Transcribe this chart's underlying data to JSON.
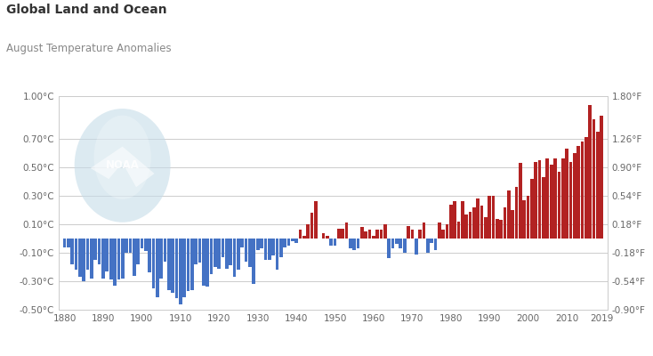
{
  "title": "Global Land and Ocean",
  "subtitle": "August Temperature Anomalies",
  "years": [
    1880,
    1881,
    1882,
    1883,
    1884,
    1885,
    1886,
    1887,
    1888,
    1889,
    1890,
    1891,
    1892,
    1893,
    1894,
    1895,
    1896,
    1897,
    1898,
    1899,
    1900,
    1901,
    1902,
    1903,
    1904,
    1905,
    1906,
    1907,
    1908,
    1909,
    1910,
    1911,
    1912,
    1913,
    1914,
    1915,
    1916,
    1917,
    1918,
    1919,
    1920,
    1921,
    1922,
    1923,
    1924,
    1925,
    1926,
    1927,
    1928,
    1929,
    1930,
    1931,
    1932,
    1933,
    1934,
    1935,
    1936,
    1937,
    1938,
    1939,
    1940,
    1941,
    1942,
    1943,
    1944,
    1945,
    1946,
    1947,
    1948,
    1949,
    1950,
    1951,
    1952,
    1953,
    1954,
    1955,
    1956,
    1957,
    1958,
    1959,
    1960,
    1961,
    1962,
    1963,
    1964,
    1965,
    1966,
    1967,
    1968,
    1969,
    1970,
    1971,
    1972,
    1973,
    1974,
    1975,
    1976,
    1977,
    1978,
    1979,
    1980,
    1981,
    1982,
    1983,
    1984,
    1985,
    1986,
    1987,
    1988,
    1989,
    1990,
    1991,
    1992,
    1993,
    1994,
    1995,
    1996,
    1997,
    1998,
    1999,
    2000,
    2001,
    2002,
    2003,
    2004,
    2005,
    2006,
    2007,
    2008,
    2009,
    2010,
    2011,
    2012,
    2013,
    2014,
    2015,
    2016,
    2017,
    2018,
    2019
  ],
  "anomalies": [
    -0.06,
    -0.06,
    -0.18,
    -0.22,
    -0.27,
    -0.3,
    -0.22,
    -0.28,
    -0.15,
    -0.18,
    -0.28,
    -0.23,
    -0.29,
    -0.33,
    -0.29,
    -0.28,
    -0.1,
    -0.1,
    -0.26,
    -0.18,
    -0.07,
    -0.09,
    -0.24,
    -0.35,
    -0.41,
    -0.28,
    -0.16,
    -0.36,
    -0.38,
    -0.42,
    -0.46,
    -0.41,
    -0.37,
    -0.36,
    -0.18,
    -0.17,
    -0.33,
    -0.34,
    -0.25,
    -0.2,
    -0.21,
    -0.13,
    -0.21,
    -0.19,
    -0.27,
    -0.22,
    -0.06,
    -0.16,
    -0.2,
    -0.32,
    -0.08,
    -0.07,
    -0.15,
    -0.15,
    -0.12,
    -0.22,
    -0.13,
    -0.06,
    -0.05,
    -0.02,
    -0.03,
    0.06,
    0.02,
    0.1,
    0.18,
    0.26,
    0.0,
    0.04,
    0.02,
    -0.05,
    -0.05,
    0.07,
    0.07,
    0.11,
    -0.07,
    -0.08,
    -0.07,
    0.08,
    0.05,
    0.06,
    0.02,
    0.06,
    0.06,
    0.1,
    -0.14,
    -0.07,
    -0.04,
    -0.07,
    -0.1,
    0.09,
    0.06,
    -0.11,
    0.06,
    0.11,
    -0.1,
    -0.03,
    -0.08,
    0.11,
    0.06,
    0.1,
    0.24,
    0.26,
    0.12,
    0.26,
    0.17,
    0.19,
    0.22,
    0.28,
    0.23,
    0.15,
    0.3,
    0.3,
    0.14,
    0.13,
    0.22,
    0.34,
    0.2,
    0.36,
    0.53,
    0.27,
    0.3,
    0.42,
    0.54,
    0.55,
    0.43,
    0.56,
    0.52,
    0.56,
    0.47,
    0.56,
    0.63,
    0.54,
    0.6,
    0.65,
    0.68,
    0.71,
    0.94,
    0.84,
    0.75,
    0.86
  ],
  "pos_color": "#b22222",
  "neg_color": "#4472c4",
  "background_color": "#ffffff",
  "grid_color": "#cccccc",
  "text_color": "#666666",
  "title_color": "#333333",
  "subtitle_color": "#888888",
  "ylim": [
    -0.5,
    1.0
  ],
  "yticks_left": [
    -0.5,
    -0.3,
    -0.1,
    0.1,
    0.3,
    0.5,
    0.7,
    1.0
  ],
  "ytick_labels_left": [
    "-0.50°C",
    "-0.30°C",
    "-0.10°C",
    "0.10°C",
    "0.30°C",
    "0.50°C",
    "0.70°C",
    "1.00°C"
  ],
  "yticks_right_celsius": [
    -0.5,
    -0.3,
    -0.1,
    0.1,
    0.3,
    0.5,
    0.7,
    1.0
  ],
  "ytick_labels_right": [
    "-0.90°F",
    "-0.54°F",
    "-0.18°F",
    "0.18°F",
    "0.54°F",
    "0.90°F",
    "1.26°F",
    "1.80°F"
  ],
  "xticks": [
    1880,
    1890,
    1900,
    1910,
    1920,
    1930,
    1940,
    1950,
    1960,
    1970,
    1980,
    1990,
    2000,
    2010,
    2019
  ],
  "xlim": [
    1878.5,
    2020.5
  ],
  "noaa_logo_color": "#c5dce8",
  "noaa_text_color": "#a8c8d8"
}
